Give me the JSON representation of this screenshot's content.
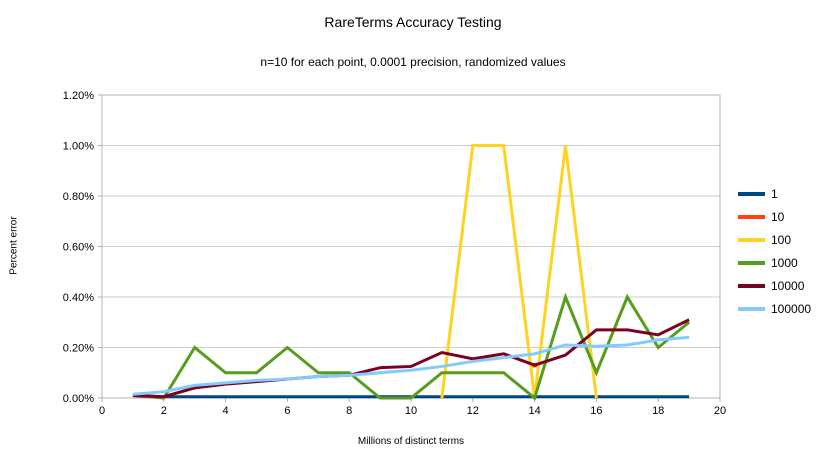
{
  "header": {
    "title": "RareTerms Accuracy Testing",
    "subtitle": "n=10 for each point, 0.0001 precision, randomized values"
  },
  "colors": {
    "gridline": "#cccccc",
    "wall_border": "#b3b3b3",
    "tick": "#b3b3b3",
    "text": "#000000"
  },
  "chart_data": {
    "type": "line",
    "title": "RareTerms Accuracy Testing",
    "subtitle": "n=10 for each point, 0.0001 precision, randomized values",
    "xlabel": "Millions of distinct terms",
    "ylabel": "Percent error",
    "xlim": [
      0,
      20
    ],
    "ylim": [
      0,
      1.2
    ],
    "grid": "horizontal",
    "legend_position": "right",
    "x_ticks": [
      {
        "v": 0,
        "label": "0"
      },
      {
        "v": 2,
        "label": "2"
      },
      {
        "v": 4,
        "label": "4"
      },
      {
        "v": 6,
        "label": "6"
      },
      {
        "v": 8,
        "label": "8"
      },
      {
        "v": 10,
        "label": "10"
      },
      {
        "v": 12,
        "label": "12"
      },
      {
        "v": 14,
        "label": "14"
      },
      {
        "v": 16,
        "label": "16"
      },
      {
        "v": 18,
        "label": "18"
      },
      {
        "v": 20,
        "label": "20"
      }
    ],
    "y_ticks": [
      {
        "v": 0.0,
        "label": "0.00%"
      },
      {
        "v": 0.2,
        "label": "0.20%"
      },
      {
        "v": 0.4,
        "label": "0.40%"
      },
      {
        "v": 0.6,
        "label": "0.60%"
      },
      {
        "v": 0.8,
        "label": "0.80%"
      },
      {
        "v": 1.0,
        "label": "1.00%"
      },
      {
        "v": 1.2,
        "label": "1.20%"
      }
    ],
    "x": [
      1,
      2,
      3,
      4,
      5,
      6,
      7,
      8,
      9,
      10,
      11,
      12,
      13,
      14,
      15,
      16,
      17,
      18,
      19
    ],
    "series": [
      {
        "name": "1",
        "color": "#004586",
        "values": [
          0.01,
          0.005,
          0.005,
          0.005,
          0.005,
          0.005,
          0.005,
          0.005,
          0.005,
          0.005,
          0.005,
          0.005,
          0.005,
          0.005,
          0.005,
          0.005,
          0.005,
          0.005,
          0.005
        ]
      },
      {
        "name": "10",
        "color": "#ff420e",
        "values": [
          null,
          null,
          null,
          null,
          null,
          null,
          null,
          null,
          null,
          null,
          null,
          null,
          null,
          0.13,
          null,
          null,
          null,
          null,
          null
        ]
      },
      {
        "name": "100",
        "color": "#ffd320",
        "values": [
          null,
          null,
          null,
          null,
          null,
          null,
          null,
          null,
          null,
          null,
          0.0,
          1.0,
          1.0,
          0.0,
          1.0,
          0.0,
          null,
          null,
          null
        ]
      },
      {
        "name": "1000",
        "color": "#579d1c",
        "values": [
          0.01,
          0.0,
          0.2,
          0.1,
          0.1,
          0.2,
          0.1,
          0.1,
          0.0,
          0.0,
          0.1,
          0.1,
          0.1,
          0.0,
          0.4,
          0.1,
          0.4,
          0.2,
          0.3
        ]
      },
      {
        "name": "10000",
        "color": "#7e0021",
        "values": [
          0.01,
          0.005,
          0.04,
          0.055,
          0.065,
          0.075,
          0.085,
          0.09,
          0.12,
          0.125,
          0.18,
          0.155,
          0.175,
          0.13,
          0.17,
          0.27,
          0.27,
          0.25,
          0.31
        ]
      },
      {
        "name": "100000",
        "color": "#83caff",
        "values": [
          0.015,
          0.025,
          0.05,
          0.06,
          0.07,
          0.075,
          0.085,
          0.09,
          0.1,
          0.11,
          0.125,
          0.145,
          0.16,
          0.175,
          0.21,
          0.205,
          0.21,
          0.23,
          0.24
        ]
      }
    ]
  }
}
